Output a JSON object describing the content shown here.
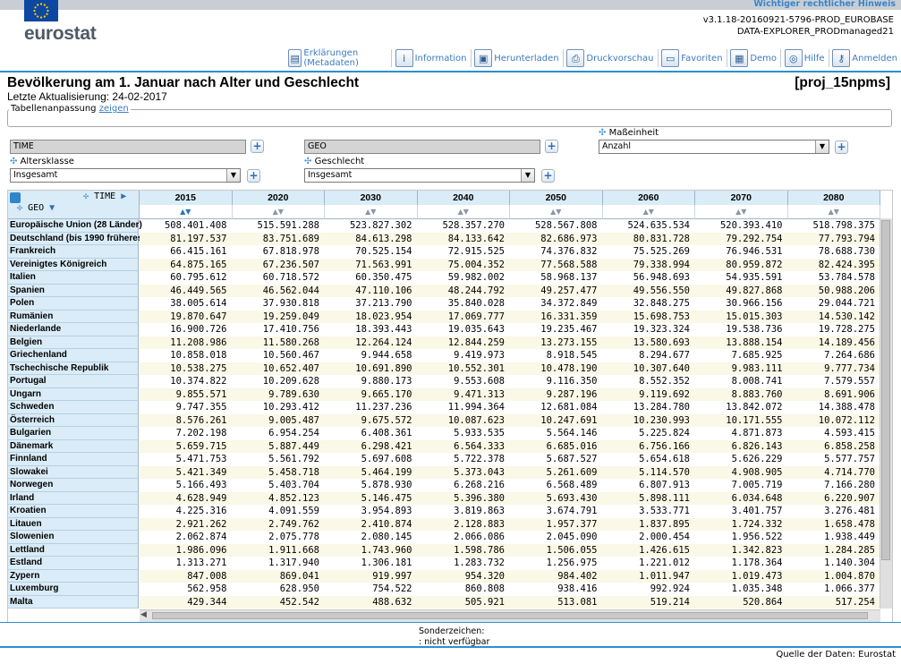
{
  "header": {
    "legal_link": "Wichtiger rechtlicher Hinweis",
    "logo": "eurostat",
    "version_line1": "v3.1.18-20160921-5796-PROD_EUROBASE",
    "version_line2": "DATA-EXPLORER_PRODmanaged21"
  },
  "toolbar": [
    {
      "label": "Erklärungen (Metadaten)",
      "icon": "metadata-icon",
      "glyph": "▤"
    },
    {
      "label": "Information",
      "icon": "info-icon",
      "glyph": "i"
    },
    {
      "label": "Herunterladen",
      "icon": "download-icon",
      "glyph": "▣"
    },
    {
      "label": "Druckvorschau",
      "icon": "print-icon",
      "glyph": "⎙"
    },
    {
      "label": "Favoriten",
      "icon": "folder-icon",
      "glyph": "▭"
    },
    {
      "label": "Demo",
      "icon": "film-icon",
      "glyph": "▦"
    },
    {
      "label": "Hilfe",
      "icon": "lifebuoy-icon",
      "glyph": "◎"
    },
    {
      "label": "Anmelden",
      "icon": "key-icon",
      "glyph": "⚷"
    }
  ],
  "page": {
    "title": "Bevölkerung am 1. Januar nach Alter und Geschlecht",
    "dataset_code": "[proj_15npms]",
    "last_update": "Letzte Aktualisierung: 24-02-2017"
  },
  "customization": {
    "legend": "Tabellenanpassung",
    "show_link": "zeigen",
    "time_dim": "TIME",
    "geo_dim": "GEO",
    "unit_label": "Maßeinheit",
    "unit_value": "Anzahl",
    "age_label": "Altersklasse",
    "age_value": "Insgesamt",
    "sex_label": "Geschlecht",
    "sex_value": "Insgesamt"
  },
  "table": {
    "time_label": "TIME",
    "geo_label": "GEO",
    "columns": [
      "2015",
      "2020",
      "2030",
      "2040",
      "2050",
      "2060",
      "2070",
      "2080"
    ],
    "rows": [
      {
        "geo": "Europäische Union (28 Länder)",
        "values": [
          "508.401.408",
          "515.591.288",
          "523.827.302",
          "528.357.270",
          "528.567.808",
          "524.635.534",
          "520.393.410",
          "518.798.375"
        ]
      },
      {
        "geo": "Deutschland (bis 1990 früheres",
        "values": [
          "81.197.537",
          "83.751.689",
          "84.613.298",
          "84.133.642",
          "82.686.973",
          "80.831.728",
          "79.292.754",
          "77.793.794"
        ]
      },
      {
        "geo": "Frankreich",
        "values": [
          "66.415.161",
          "67.818.978",
          "70.525.154",
          "72.915.525",
          "74.376.832",
          "75.525.269",
          "76.946.531",
          "78.688.730"
        ]
      },
      {
        "geo": "Vereinigtes Königreich",
        "values": [
          "64.875.165",
          "67.236.507",
          "71.563.991",
          "75.004.352",
          "77.568.588",
          "79.338.994",
          "80.959.872",
          "82.424.395"
        ]
      },
      {
        "geo": "Italien",
        "values": [
          "60.795.612",
          "60.718.572",
          "60.350.475",
          "59.982.002",
          "58.968.137",
          "56.948.693",
          "54.935.591",
          "53.784.578"
        ]
      },
      {
        "geo": "Spanien",
        "values": [
          "46.449.565",
          "46.562.044",
          "47.110.106",
          "48.244.792",
          "49.257.477",
          "49.556.550",
          "49.827.868",
          "50.988.206"
        ]
      },
      {
        "geo": "Polen",
        "values": [
          "38.005.614",
          "37.930.818",
          "37.213.790",
          "35.840.028",
          "34.372.849",
          "32.848.275",
          "30.966.156",
          "29.044.721"
        ]
      },
      {
        "geo": "Rumänien",
        "values": [
          "19.870.647",
          "19.259.049",
          "18.023.954",
          "17.069.777",
          "16.331.359",
          "15.698.753",
          "15.015.303",
          "14.530.142"
        ]
      },
      {
        "geo": "Niederlande",
        "values": [
          "16.900.726",
          "17.410.756",
          "18.393.443",
          "19.035.643",
          "19.235.467",
          "19.323.324",
          "19.538.736",
          "19.728.275"
        ]
      },
      {
        "geo": "Belgien",
        "values": [
          "11.208.986",
          "11.580.268",
          "12.264.124",
          "12.844.259",
          "13.273.155",
          "13.580.693",
          "13.888.154",
          "14.189.456"
        ]
      },
      {
        "geo": "Griechenland",
        "values": [
          "10.858.018",
          "10.560.467",
          "9.944.658",
          "9.419.973",
          "8.918.545",
          "8.294.677",
          "7.685.925",
          "7.264.686"
        ]
      },
      {
        "geo": "Tschechische Republik",
        "values": [
          "10.538.275",
          "10.652.407",
          "10.691.890",
          "10.552.301",
          "10.478.190",
          "10.307.640",
          "9.983.111",
          "9.777.734"
        ]
      },
      {
        "geo": "Portugal",
        "values": [
          "10.374.822",
          "10.209.628",
          "9.880.173",
          "9.553.608",
          "9.116.350",
          "8.552.352",
          "8.008.741",
          "7.579.557"
        ]
      },
      {
        "geo": "Ungarn",
        "values": [
          "9.855.571",
          "9.789.630",
          "9.665.170",
          "9.471.313",
          "9.287.196",
          "9.119.692",
          "8.883.760",
          "8.691.906"
        ]
      },
      {
        "geo": "Schweden",
        "values": [
          "9.747.355",
          "10.293.412",
          "11.237.236",
          "11.994.364",
          "12.681.084",
          "13.284.780",
          "13.842.072",
          "14.388.478"
        ]
      },
      {
        "geo": "Österreich",
        "values": [
          "8.576.261",
          "9.005.487",
          "9.675.572",
          "10.087.623",
          "10.247.691",
          "10.230.993",
          "10.171.555",
          "10.072.112"
        ]
      },
      {
        "geo": "Bulgarien",
        "values": [
          "7.202.198",
          "6.954.254",
          "6.408.361",
          "5.933.535",
          "5.564.146",
          "5.225.824",
          "4.871.873",
          "4.593.415"
        ]
      },
      {
        "geo": "Dänemark",
        "values": [
          "5.659.715",
          "5.887.449",
          "6.298.421",
          "6.564.333",
          "6.685.016",
          "6.756.166",
          "6.826.143",
          "6.858.258"
        ]
      },
      {
        "geo": "Finnland",
        "values": [
          "5.471.753",
          "5.561.792",
          "5.697.608",
          "5.722.378",
          "5.687.527",
          "5.654.618",
          "5.626.229",
          "5.577.757"
        ]
      },
      {
        "geo": "Slowakei",
        "values": [
          "5.421.349",
          "5.458.718",
          "5.464.199",
          "5.373.043",
          "5.261.609",
          "5.114.570",
          "4.908.905",
          "4.714.770"
        ]
      },
      {
        "geo": "Norwegen",
        "values": [
          "5.166.493",
          "5.403.704",
          "5.878.930",
          "6.268.216",
          "6.568.489",
          "6.807.913",
          "7.005.719",
          "7.166.280"
        ]
      },
      {
        "geo": "Irland",
        "values": [
          "4.628.949",
          "4.852.123",
          "5.146.475",
          "5.396.380",
          "5.693.430",
          "5.898.111",
          "6.034.648",
          "6.220.907"
        ]
      },
      {
        "geo": "Kroatien",
        "values": [
          "4.225.316",
          "4.091.559",
          "3.954.893",
          "3.819.863",
          "3.674.791",
          "3.533.771",
          "3.401.757",
          "3.276.481"
        ]
      },
      {
        "geo": "Litauen",
        "values": [
          "2.921.262",
          "2.749.762",
          "2.410.874",
          "2.128.883",
          "1.957.377",
          "1.837.895",
          "1.724.332",
          "1.658.478"
        ]
      },
      {
        "geo": "Slowenien",
        "values": [
          "2.062.874",
          "2.075.778",
          "2.080.145",
          "2.066.086",
          "2.045.090",
          "2.000.454",
          "1.956.522",
          "1.938.449"
        ]
      },
      {
        "geo": "Lettland",
        "values": [
          "1.986.096",
          "1.911.668",
          "1.743.960",
          "1.598.786",
          "1.506.055",
          "1.426.615",
          "1.342.823",
          "1.284.285"
        ]
      },
      {
        "geo": "Estland",
        "values": [
          "1.313.271",
          "1.317.940",
          "1.306.181",
          "1.283.732",
          "1.256.975",
          "1.221.012",
          "1.178.364",
          "1.140.304"
        ]
      },
      {
        "geo": "Zypern",
        "values": [
          "847.008",
          "869.041",
          "919.997",
          "954.320",
          "984.402",
          "1.011.947",
          "1.019.473",
          "1.004.870"
        ]
      },
      {
        "geo": "Luxemburg",
        "values": [
          "562.958",
          "628.950",
          "754.522",
          "860.808",
          "938.416",
          "992.924",
          "1.035.348",
          "1.066.377"
        ]
      },
      {
        "geo": "Malta",
        "values": [
          "429.344",
          "452.542",
          "488.632",
          "505.921",
          "513.081",
          "519.214",
          "520.864",
          "517.254"
        ]
      }
    ]
  },
  "footer": {
    "special_title": "Sonderzeichen:",
    "special_na": ": nicht verfügbar",
    "source": "Quelle der Daten: Eurostat"
  }
}
